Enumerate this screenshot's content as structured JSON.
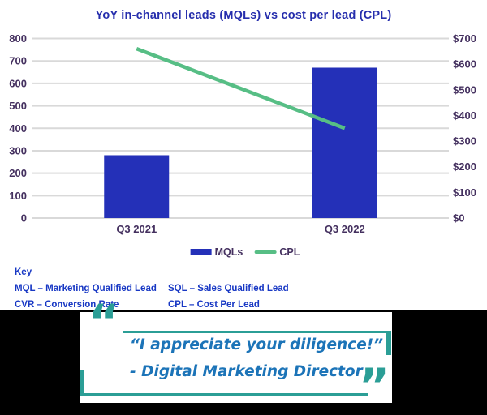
{
  "title": "YoY in-channel leads (MQLs) vs cost per lead (CPL)",
  "chart_data": {
    "type": "bar",
    "subtype": "combo-bar-line",
    "categories": [
      "Q3 2021",
      "Q3 2022"
    ],
    "series": [
      {
        "name": "MQLs",
        "kind": "bar",
        "axis": "left",
        "values": [
          280,
          670
        ]
      },
      {
        "name": "CPL",
        "kind": "line",
        "axis": "right",
        "values": [
          660,
          350
        ]
      }
    ],
    "left_axis": {
      "min": 0,
      "max": 800,
      "step": 100,
      "ticks": [
        "800",
        "700",
        "600",
        "500",
        "400",
        "300",
        "200",
        "100",
        "0"
      ]
    },
    "right_axis": {
      "min": 0,
      "max": 700,
      "step": 100,
      "ticks": [
        "$700",
        "$600",
        "$500",
        "$400",
        "$300",
        "$200",
        "$100",
        "$0"
      ]
    },
    "grid": true,
    "legend_position": "bottom",
    "title": "YoY in-channel leads (MQLs) vs cost per lead (CPL)"
  },
  "legend": {
    "items": [
      {
        "label": "MQLs",
        "swatch": "bar"
      },
      {
        "label": "CPL",
        "swatch": "line"
      }
    ]
  },
  "key": {
    "heading": "Key",
    "entries": [
      [
        "MQL – Marketing Qualified Lead",
        "SQL – Sales Qualified Lead"
      ],
      [
        "CVR – Conversion Rate",
        "CPL – Cost Per Lead"
      ]
    ]
  },
  "quote": {
    "open_mark": "“",
    "close_mark": "”",
    "line1": "“I appreciate your diligence!”",
    "line2": "- Digital Marketing Director"
  },
  "colors": {
    "title_blue": "#262EAD",
    "bar_blue": "#2430B8",
    "line_green": "#57BE85",
    "grid_gray": "#D9D9D9",
    "axis_purple": "#44305F",
    "key_blue": "#1838C4",
    "quote_blue": "#1C74B8",
    "teal": "#2B9E96",
    "band_black": "#000000",
    "card_white": "#FFFFFF"
  }
}
